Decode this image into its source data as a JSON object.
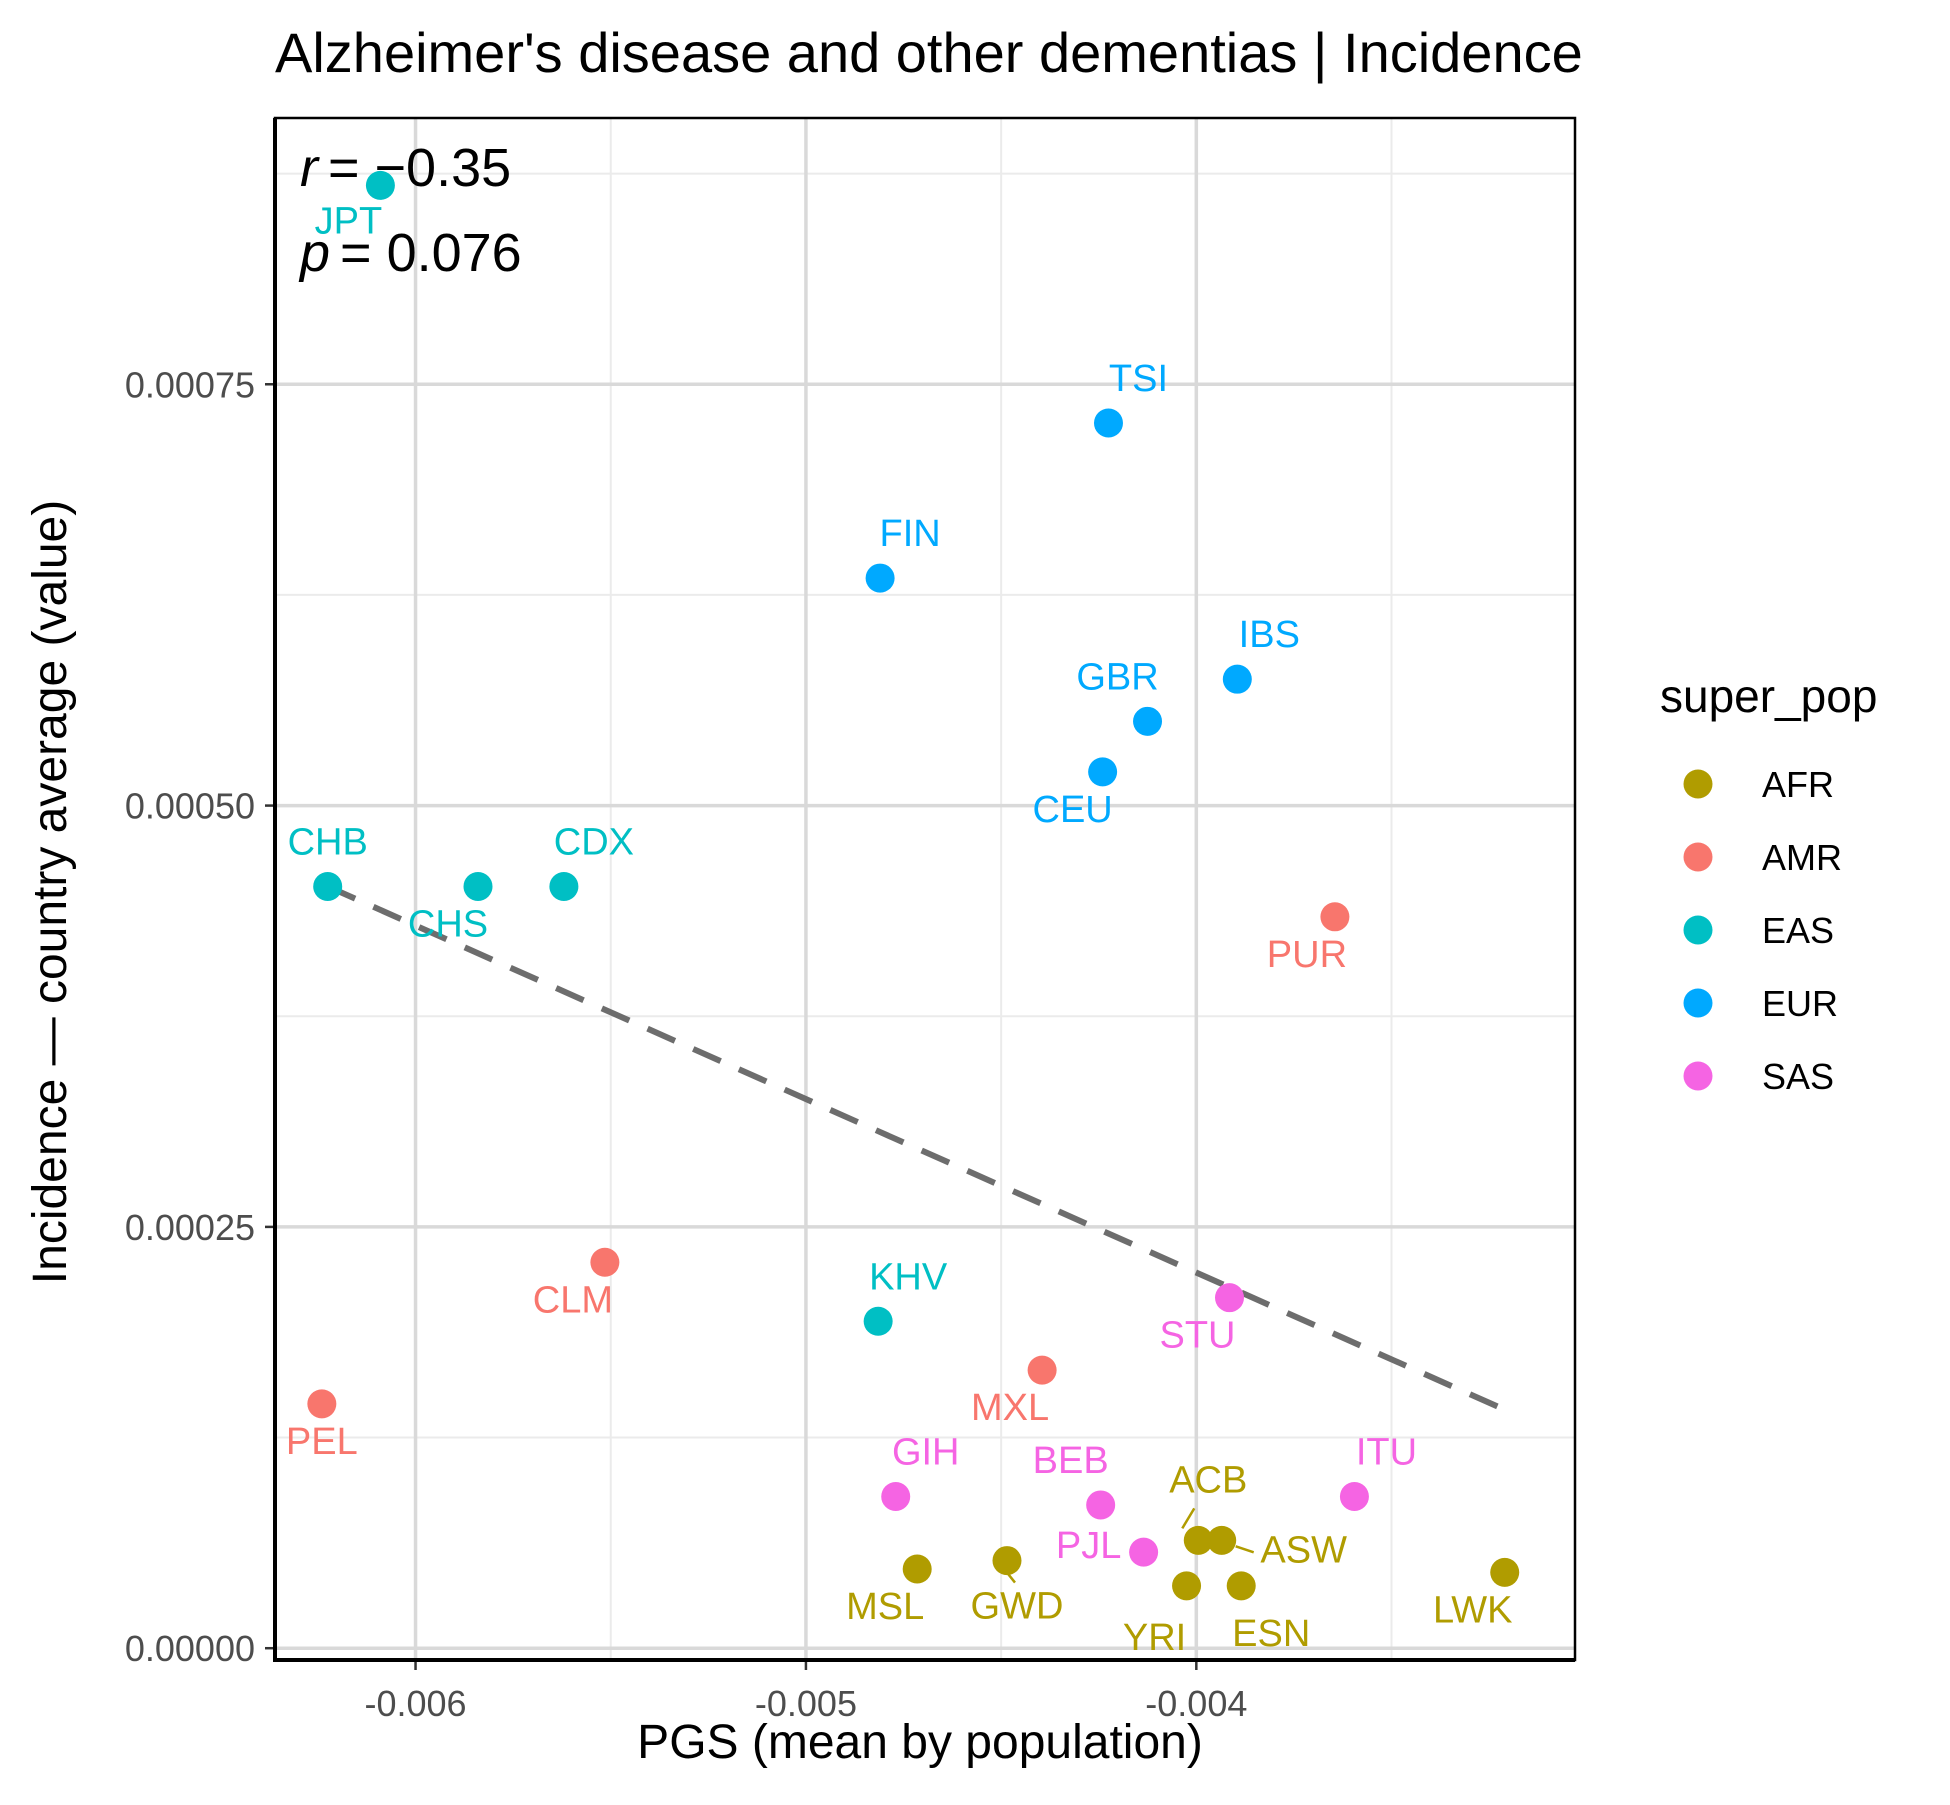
{
  "chart_data": {
    "type": "scatter",
    "title": "Alzheimer's disease and other dementias | Incidence",
    "xlabel": "PGS (mean by population)",
    "ylabel": "Incidence — country average (value)",
    "xlim": [
      -0.00636,
      -0.00303
    ],
    "ylim": [
      -7e-06,
      0.000908
    ],
    "x_ticks": [
      {
        "value": -0.006,
        "label": "-0.006"
      },
      {
        "value": -0.005,
        "label": "-0.005"
      },
      {
        "value": -0.004,
        "label": "-0.004"
      }
    ],
    "y_ticks": [
      {
        "value": 0.0,
        "label": "0.00000"
      },
      {
        "value": 0.00025,
        "label": "0.00025"
      },
      {
        "value": 0.0005,
        "label": "0.00050"
      },
      {
        "value": 0.00075,
        "label": "0.00075"
      }
    ],
    "grid": true,
    "legend": {
      "title": "super_pop",
      "position": "right",
      "entries": [
        {
          "name": "AFR",
          "color": "#B09C00"
        },
        {
          "name": "AMR",
          "color": "#F8766D"
        },
        {
          "name": "EAS",
          "color": "#00BFC4"
        },
        {
          "name": "EUR",
          "color": "#00A9FF"
        },
        {
          "name": "SAS",
          "color": "#F564E3"
        }
      ]
    },
    "annotation": {
      "r_symbol": "r",
      "r_value": "= −0.35",
      "p_symbol": "p",
      "p_value": "= 0.076"
    },
    "trend_line": {
      "x": [
        -0.006225,
        -0.003195
      ],
      "y": [
        0.000452,
        0.00014
      ],
      "style": "dashed",
      "color": "#666666"
    },
    "points": [
      {
        "label": "JPT",
        "group": "EAS",
        "x": -0.00609,
        "y": 0.000868
      },
      {
        "label": "CHB",
        "group": "EAS",
        "x": -0.006225,
        "y": 0.000452
      },
      {
        "label": "CHS",
        "group": "EAS",
        "x": -0.00584,
        "y": 0.000452
      },
      {
        "label": "CDX",
        "group": "EAS",
        "x": -0.00562,
        "y": 0.000452
      },
      {
        "label": "KHV",
        "group": "EAS",
        "x": -0.004815,
        "y": 0.000194
      },
      {
        "label": "TSI",
        "group": "EUR",
        "x": -0.004225,
        "y": 0.000727
      },
      {
        "label": "FIN",
        "group": "EUR",
        "x": -0.00481,
        "y": 0.000635
      },
      {
        "label": "IBS",
        "group": "EUR",
        "x": -0.003895,
        "y": 0.000575
      },
      {
        "label": "GBR",
        "group": "EUR",
        "x": -0.004125,
        "y": 0.00055
      },
      {
        "label": "CEU",
        "group": "EUR",
        "x": -0.00424,
        "y": 0.00052
      },
      {
        "label": "PUR",
        "group": "AMR",
        "x": -0.003645,
        "y": 0.000434
      },
      {
        "label": "CLM",
        "group": "AMR",
        "x": -0.005515,
        "y": 0.000229
      },
      {
        "label": "MXL",
        "group": "AMR",
        "x": -0.004395,
        "y": 0.000165
      },
      {
        "label": "PEL",
        "group": "AMR",
        "x": -0.00624,
        "y": 0.000145
      },
      {
        "label": "STU",
        "group": "SAS",
        "x": -0.003915,
        "y": 0.000208
      },
      {
        "label": "GIH",
        "group": "SAS",
        "x": -0.00477,
        "y": 9e-05
      },
      {
        "label": "BEB",
        "group": "SAS",
        "x": -0.004245,
        "y": 8.5e-05
      },
      {
        "label": "ITU",
        "group": "SAS",
        "x": -0.003595,
        "y": 9e-05
      },
      {
        "label": "PJL",
        "group": "SAS",
        "x": -0.004135,
        "y": 5.7e-05
      },
      {
        "label": "ACB",
        "group": "AFR",
        "x": -0.003995,
        "y": 6.4e-05
      },
      {
        "label": "ASW",
        "group": "AFR",
        "x": -0.003935,
        "y": 6.4e-05
      },
      {
        "label": "MSL",
        "group": "AFR",
        "x": -0.004715,
        "y": 4.7e-05
      },
      {
        "label": "GWD",
        "group": "AFR",
        "x": -0.004485,
        "y": 5.2e-05
      },
      {
        "label": "YRI",
        "group": "AFR",
        "x": -0.004025,
        "y": 3.7e-05
      },
      {
        "label": "ESN",
        "group": "AFR",
        "x": -0.003885,
        "y": 3.7e-05
      },
      {
        "label": "LWK",
        "group": "AFR",
        "x": -0.00321,
        "y": 4.5e-05
      }
    ]
  }
}
